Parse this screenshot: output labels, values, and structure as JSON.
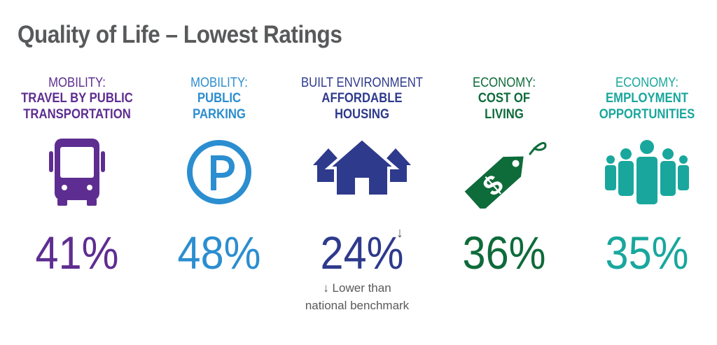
{
  "title": "Quality of Life – Lowest Ratings",
  "colors": {
    "title": "#58595b",
    "mobility_transit": "#5e2d91",
    "mobility_parking": "#2b8ed0",
    "built_environment": "#2e3a8c",
    "economy_cost": "#0e6b3a",
    "economy_employment": "#19a79d"
  },
  "items": [
    {
      "category": "MOBILITY:",
      "label_lines": [
        "TRAVEL BY PUBLIC",
        "TRANSPORTATION"
      ],
      "icon": "bus-icon",
      "value": "41%"
    },
    {
      "category": "MOBILITY:",
      "label_lines": [
        "PUBLIC",
        "PARKING"
      ],
      "icon": "parking-icon",
      "value": "48%"
    },
    {
      "category": "BUILT ENVIRONMENT",
      "label_lines": [
        "AFFORDABLE",
        "HOUSING"
      ],
      "icon": "houses-icon",
      "value": "24%"
    },
    {
      "category": "ECONOMY:",
      "label_lines": [
        "COST OF",
        "LIVING"
      ],
      "icon": "price-tag-icon",
      "value": "36%"
    },
    {
      "category": "ECONOMY:",
      "label_lines": [
        "EMPLOYMENT",
        "OPPORTUNITIES"
      ],
      "icon": "people-icon",
      "value": "35%"
    }
  ],
  "benchmark_marker": "↓",
  "footnote": {
    "line1": "↓ Lower than",
    "line2": "national benchmark"
  }
}
